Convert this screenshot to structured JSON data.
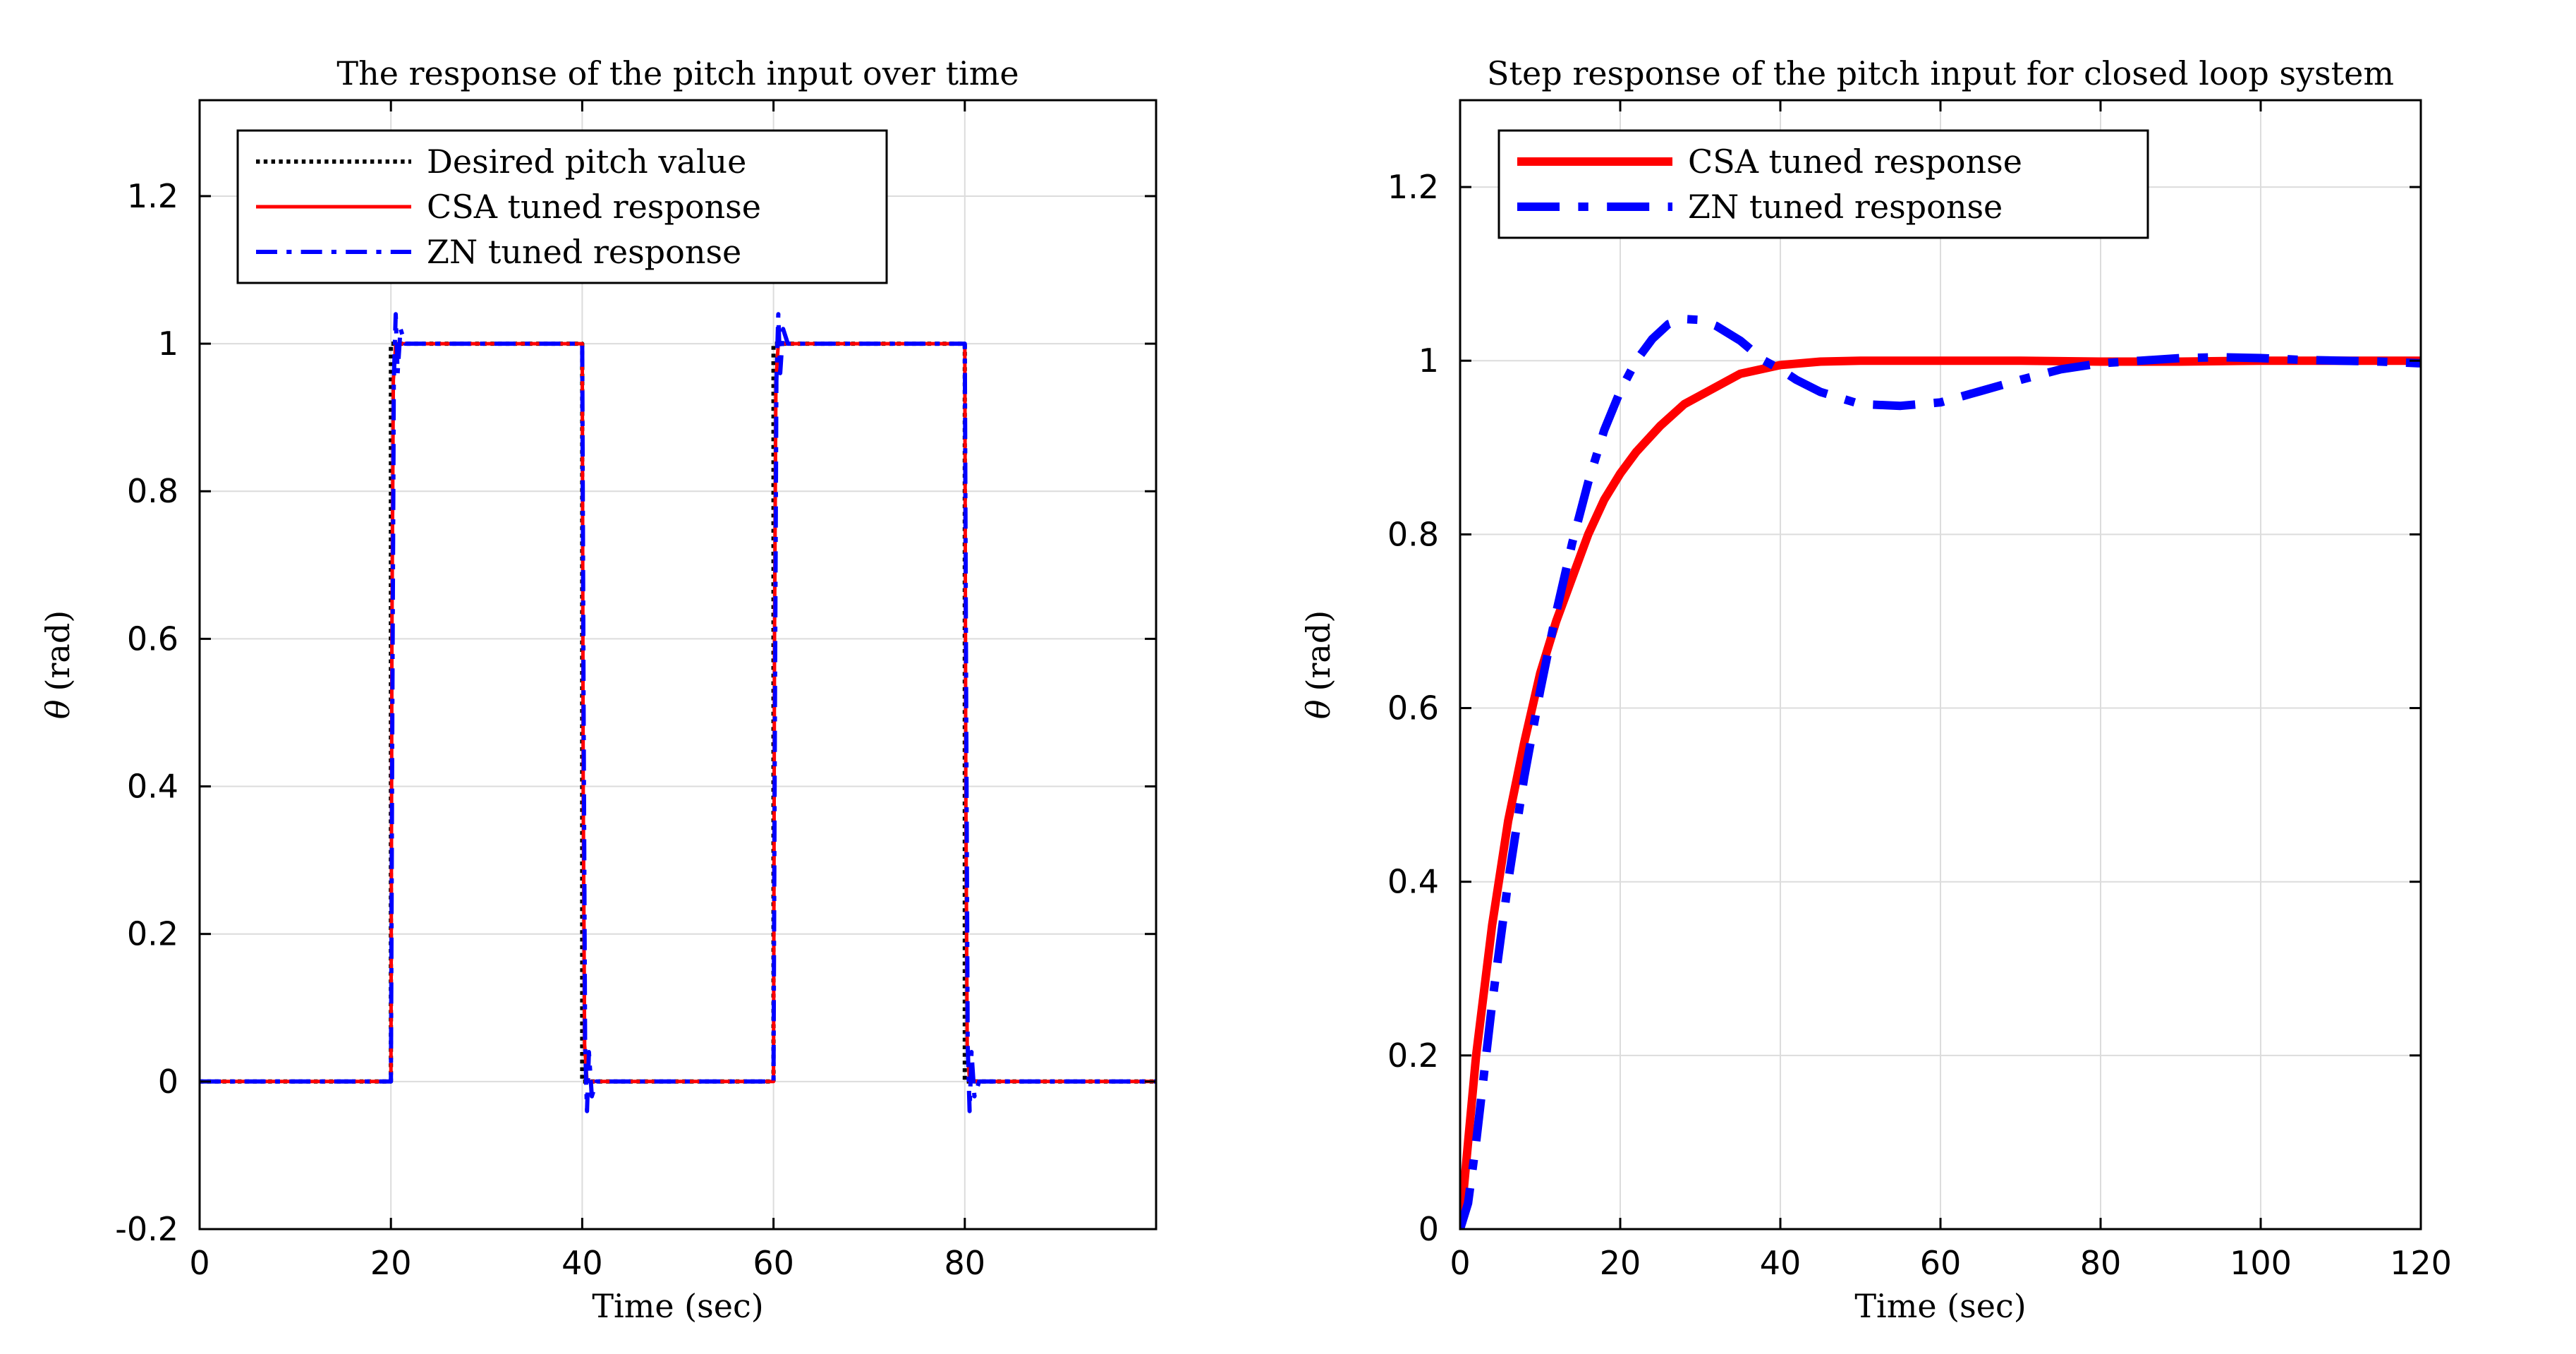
{
  "chart_data": [
    {
      "type": "line",
      "title": "The response of the pitch input over time",
      "xlabel": "Time (sec)",
      "ylabel_symbol": "θ",
      "ylabel_unit": "(rad)",
      "xlim": [
        0,
        100
      ],
      "ylim": [
        -0.2,
        1.33
      ],
      "xticks": [
        0,
        20,
        40,
        60,
        80
      ],
      "xtick_labels": [
        "0",
        "20",
        "40",
        "60",
        "80"
      ],
      "yticks": [
        -0.2,
        0,
        0.2,
        0.4,
        0.6,
        0.8,
        1,
        1.2
      ],
      "ytick_labels": [
        "-0.2",
        "0",
        "0.2",
        "0.4",
        "0.6",
        "0.8",
        "1",
        "1.2"
      ],
      "grid": true,
      "legend_position": "top-left",
      "series": [
        {
          "name": "Desired pitch value",
          "color": "#000000",
          "style": "dotted",
          "x": [
            0,
            20,
            20,
            40,
            40,
            60,
            60,
            80,
            80,
            100
          ],
          "y": [
            0,
            0,
            1,
            1,
            0,
            0,
            1,
            1,
            0,
            0
          ]
        },
        {
          "name": "CSA tuned response",
          "color": "#ff0000",
          "style": "solid",
          "x": [
            0,
            20,
            20.1,
            20.25,
            20.5,
            40,
            40.1,
            40.25,
            40.5,
            60,
            60.1,
            60.25,
            60.5,
            80,
            80.1,
            80.25,
            80.5,
            100
          ],
          "y": [
            0,
            0,
            0.6,
            0.95,
            1,
            1,
            0.4,
            0.05,
            0,
            0,
            0.6,
            0.95,
            1,
            1,
            0.4,
            0.05,
            0,
            0
          ]
        },
        {
          "name": "ZN tuned response",
          "color": "#0000ff",
          "style": "dashdot",
          "x": [
            0,
            20,
            20.15,
            20.3,
            20.5,
            20.7,
            21,
            21.5,
            40,
            40.15,
            40.3,
            40.5,
            40.7,
            41,
            41.5,
            60,
            60.15,
            60.3,
            60.5,
            60.7,
            61,
            61.5,
            80,
            80.15,
            80.3,
            80.5,
            80.7,
            81,
            81.5,
            100
          ],
          "y": [
            0,
            0,
            0.5,
            0.95,
            1.04,
            0.96,
            1.02,
            1,
            1,
            0.5,
            0.05,
            -0.04,
            0.04,
            -0.02,
            0,
            0,
            0.5,
            0.95,
            1.04,
            0.96,
            1.02,
            1,
            1,
            0.5,
            0.05,
            -0.04,
            0.04,
            -0.02,
            0,
            0
          ]
        }
      ]
    },
    {
      "type": "line",
      "title": "Step response of the pitch input for closed loop system",
      "xlabel": "Time (sec)",
      "ylabel_symbol": "θ",
      "ylabel_unit": "(rad)",
      "xlim": [
        0,
        120
      ],
      "ylim": [
        0,
        1.3
      ],
      "xticks": [
        0,
        20,
        40,
        60,
        80,
        100,
        120
      ],
      "xtick_labels": [
        "0",
        "20",
        "40",
        "60",
        "80",
        "100",
        "120"
      ],
      "yticks": [
        0,
        0.2,
        0.4,
        0.6,
        0.8,
        1,
        1.2
      ],
      "ytick_labels": [
        "0",
        "0.2",
        "0.4",
        "0.6",
        "0.8",
        "1",
        "1.2"
      ],
      "grid": true,
      "legend_position": "top-left",
      "series": [
        {
          "name": "CSA tuned response",
          "color": "#ff0000",
          "style": "solid",
          "x": [
            0,
            1,
            2,
            4,
            6,
            8,
            10,
            12,
            14,
            16,
            18,
            20,
            22,
            25,
            28,
            30,
            35,
            40,
            45,
            50,
            55,
            60,
            70,
            80,
            90,
            100,
            110,
            120
          ],
          "y": [
            0,
            0.1,
            0.2,
            0.35,
            0.47,
            0.56,
            0.64,
            0.7,
            0.75,
            0.8,
            0.84,
            0.87,
            0.895,
            0.925,
            0.95,
            0.96,
            0.985,
            0.995,
            0.999,
            1.0,
            1.0,
            1.0,
            1.0,
            0.999,
            0.999,
            1.0,
            1.0,
            1.0
          ]
        },
        {
          "name": "ZN tuned response",
          "color": "#0000ff",
          "style": "dashdot",
          "x": [
            0,
            1,
            2,
            4,
            6,
            8,
            10,
            12,
            14,
            16,
            18,
            20,
            22,
            24,
            26,
            28,
            30,
            32,
            35,
            38,
            40,
            42,
            45,
            50,
            55,
            60,
            65,
            70,
            75,
            80,
            85,
            90,
            95,
            100,
            105,
            110,
            115,
            120
          ],
          "y": [
            0,
            0.03,
            0.1,
            0.26,
            0.4,
            0.52,
            0.62,
            0.71,
            0.79,
            0.86,
            0.92,
            0.965,
            1.0,
            1.025,
            1.042,
            1.048,
            1.047,
            1.04,
            1.023,
            1.0,
            0.99,
            0.978,
            0.964,
            0.95,
            0.948,
            0.952,
            0.965,
            0.978,
            0.99,
            0.997,
            1.0,
            1.003,
            1.004,
            1.003,
            1.001,
            1.0,
            0.999,
            0.997
          ]
        }
      ]
    }
  ]
}
